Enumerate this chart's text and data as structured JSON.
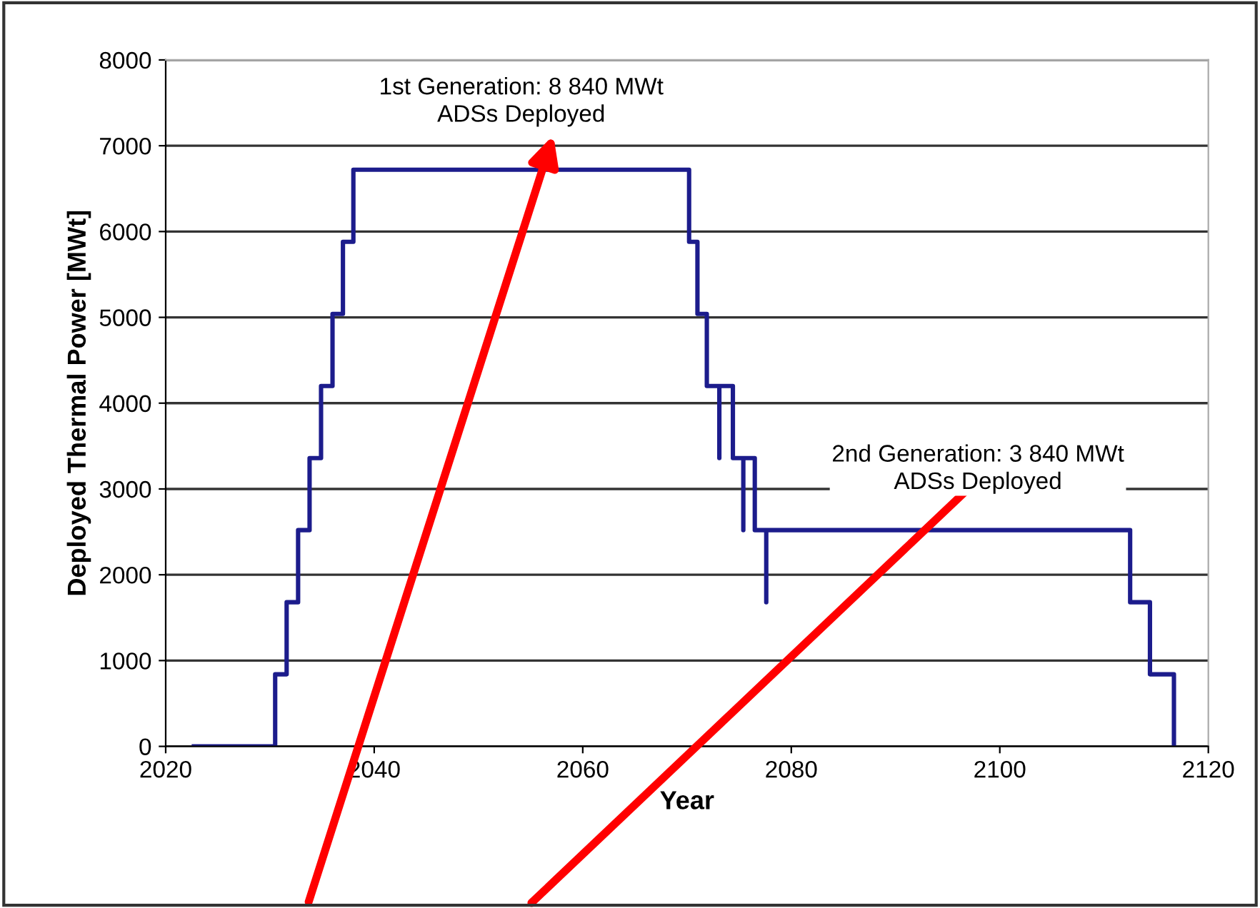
{
  "chart_data": {
    "type": "line",
    "xlabel": "Year",
    "ylabel": "Deployed Thermal Power [MWt]",
    "xlim": [
      2020,
      2120
    ],
    "xticks": [
      2020,
      2040,
      2060,
      2080,
      2100,
      2120
    ],
    "ylim": [
      0,
      8000
    ],
    "yticks": [
      0,
      1000,
      2000,
      3000,
      4000,
      5000,
      6000,
      7000,
      8000
    ],
    "grid": "y",
    "marker": "none",
    "line_style": "solid",
    "series": [
      {
        "color": "#1c1c8c",
        "x": [
          2022.7,
          2030.5,
          2030.5,
          2031.6,
          2031.6,
          2032.7,
          2032.7,
          2033.8,
          2033.8,
          2034.9,
          2034.9,
          2036.0,
          2036.0,
          2037.0,
          2037.0,
          2038.0,
          2038.0,
          2070.2,
          2070.2,
          2071.0,
          2071.0,
          2071.9,
          2071.9,
          2073.1,
          2073.1,
          2073.1,
          2074.4,
          2074.4,
          2075.4,
          2075.4,
          2075.4,
          2076.5,
          2076.5,
          2077.6,
          2077.6,
          2077.6,
          2112.5,
          2112.5,
          2114.4,
          2114.4,
          2116.7,
          2116.7
        ],
        "values": [
          0,
          0,
          840,
          840,
          1680,
          1680,
          2520,
          2520,
          3360,
          3360,
          4200,
          4200,
          5040,
          5040,
          5880,
          5880,
          6720,
          6720,
          5880,
          5880,
          5040,
          5040,
          4200,
          4200,
          3360,
          4200,
          4200,
          3360,
          3360,
          2520,
          3360,
          3360,
          2520,
          2520,
          1680,
          2520,
          2520,
          1680,
          1680,
          840,
          840,
          0
        ]
      }
    ],
    "annotations": [
      "1st Generation: 8 840 MWt\nADSs Deployed",
      "2nd Generation: 3 840 MWt\nADSs Deployed"
    ]
  }
}
